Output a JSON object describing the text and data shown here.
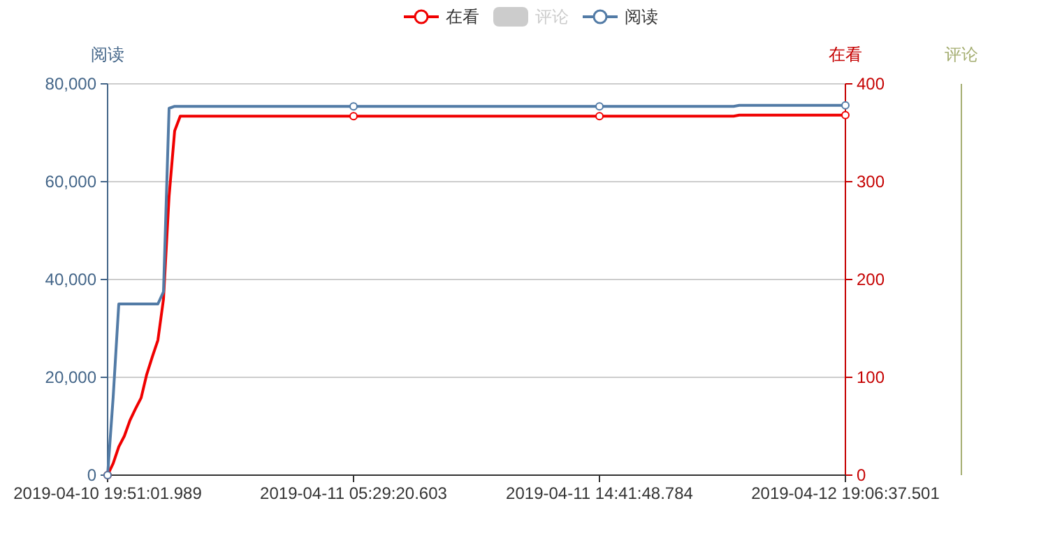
{
  "chart_data": {
    "type": "line",
    "categories": [
      "2019-04-10 19:51:01.989",
      null,
      null,
      null,
      null,
      null,
      null,
      null,
      null,
      null,
      null,
      null,
      null,
      null,
      null,
      null,
      null,
      null,
      null,
      null,
      null,
      null,
      null,
      null,
      null,
      null,
      null,
      null,
      null,
      null,
      null,
      null,
      null,
      null,
      null,
      null,
      null,
      null,
      null,
      null,
      null,
      null,
      null,
      null,
      "2019-04-11 05:29:20.603",
      null,
      null,
      null,
      null,
      null,
      null,
      null,
      null,
      null,
      null,
      null,
      null,
      null,
      null,
      null,
      null,
      null,
      null,
      null,
      null,
      null,
      null,
      null,
      null,
      null,
      null,
      null,
      null,
      null,
      null,
      null,
      null,
      null,
      null,
      null,
      null,
      null,
      null,
      null,
      null,
      null,
      null,
      null,
      "2019-04-11 14:41:48.784",
      null,
      null,
      null,
      null,
      null,
      null,
      null,
      null,
      null,
      null,
      null,
      null,
      null,
      null,
      null,
      null,
      null,
      null,
      null,
      null,
      null,
      null,
      null,
      null,
      null,
      null,
      null,
      null,
      null,
      null,
      null,
      null,
      null,
      null,
      null,
      null,
      null,
      null,
      null,
      null,
      null,
      null,
      null,
      "2019-04-12 19:06:37.501"
    ],
    "series": [
      {
        "name": "在看",
        "color": "#f00000",
        "axis": "y2",
        "values": [
          0,
          12,
          29,
          40,
          56,
          68,
          79,
          103,
          121,
          138,
          180,
          285,
          352,
          367,
          367,
          367,
          367,
          367,
          367,
          367,
          367,
          367,
          367,
          367,
          367,
          367,
          367,
          367,
          367,
          367,
          367,
          367,
          367,
          367,
          367,
          367,
          367,
          367,
          367,
          367,
          367,
          367,
          367,
          367,
          367,
          367,
          367,
          367,
          367,
          367,
          367,
          367,
          367,
          367,
          367,
          367,
          367,
          367,
          367,
          367,
          367,
          367,
          367,
          367,
          367,
          367,
          367,
          367,
          367,
          367,
          367,
          367,
          367,
          367,
          367,
          367,
          367,
          367,
          367,
          367,
          367,
          367,
          367,
          367,
          367,
          367,
          367,
          367,
          367,
          367,
          367,
          367,
          367,
          367,
          367,
          367,
          367,
          367,
          367,
          367,
          367,
          367,
          367,
          367,
          367,
          367,
          367,
          367,
          367,
          367,
          367,
          367,
          367,
          368,
          368,
          368,
          368,
          368,
          368,
          368,
          368,
          368,
          368,
          368,
          368,
          368,
          368,
          368,
          368,
          368,
          368,
          368,
          368
        ]
      },
      {
        "name": "评论",
        "type": "bar",
        "color": "#cccccc",
        "values": [
          null,
          null,
          null,
          null,
          null,
          null,
          null,
          null,
          null,
          null,
          null,
          null,
          null,
          null,
          null,
          null,
          null,
          null,
          null,
          null,
          null,
          null,
          null,
          null,
          null,
          null,
          null,
          null,
          null,
          null,
          null,
          null,
          null,
          null,
          null,
          null,
          null,
          null,
          null,
          null,
          null,
          null,
          null,
          null,
          null,
          null,
          null,
          null,
          null,
          null,
          null,
          null,
          null,
          null,
          null,
          null,
          null,
          null,
          null,
          null,
          null,
          null,
          null,
          null,
          null,
          null,
          null,
          null,
          null,
          null,
          null,
          null,
          null,
          null,
          null,
          null,
          null,
          null,
          null,
          null,
          null,
          null,
          null,
          null,
          null,
          null,
          null,
          null,
          null,
          null,
          null,
          null,
          null,
          null,
          null,
          null,
          null,
          null,
          null,
          null,
          null,
          null,
          null,
          null,
          null,
          null,
          null,
          null,
          null,
          null,
          null,
          null,
          null,
          null,
          null,
          null,
          null,
          null,
          null,
          null,
          null,
          null,
          null,
          null,
          null,
          null,
          null,
          null,
          null,
          null,
          null,
          null,
          null
        ]
      },
      {
        "name": "阅读",
        "color": "#527ba6",
        "values": [
          0,
          16000,
          35000,
          35000,
          35000,
          35000,
          35000,
          35000,
          35000,
          35000,
          37500,
          75000,
          75400,
          75400,
          75400,
          75400,
          75400,
          75400,
          75400,
          75400,
          75400,
          75400,
          75400,
          75400,
          75400,
          75400,
          75400,
          75400,
          75400,
          75400,
          75400,
          75400,
          75400,
          75400,
          75400,
          75400,
          75400,
          75400,
          75400,
          75400,
          75400,
          75400,
          75400,
          75400,
          75400,
          75400,
          75400,
          75400,
          75400,
          75400,
          75400,
          75400,
          75400,
          75400,
          75400,
          75400,
          75400,
          75400,
          75400,
          75400,
          75400,
          75400,
          75400,
          75400,
          75400,
          75400,
          75400,
          75400,
          75400,
          75400,
          75400,
          75400,
          75400,
          75400,
          75400,
          75400,
          75400,
          75400,
          75400,
          75400,
          75400,
          75400,
          75400,
          75400,
          75400,
          75400,
          75400,
          75400,
          75400,
          75400,
          75400,
          75400,
          75400,
          75400,
          75400,
          75400,
          75400,
          75400,
          75400,
          75400,
          75400,
          75400,
          75400,
          75400,
          75400,
          75400,
          75400,
          75400,
          75400,
          75400,
          75400,
          75400,
          75400,
          75600,
          75600,
          75600,
          75600,
          75600,
          75600,
          75600,
          75600,
          75600,
          75600,
          75600,
          75600,
          75600,
          75600,
          75600,
          75600,
          75600,
          75600,
          75600,
          75600
        ]
      }
    ],
    "ylabel": "阅读",
    "y2label": "在看",
    "y3label": "评论",
    "ylim": [
      0,
      80000
    ],
    "yticks": [
      0,
      {
        "value": 20000,
        "label": "20,000"
      },
      {
        "value": 40000,
        "label": "40,000"
      },
      {
        "value": 60000,
        "label": "60,000"
      },
      {
        "value": 80000,
        "label": "80,000"
      }
    ],
    "y2lim": [
      0,
      400
    ],
    "y2ticks": [
      0,
      100,
      200,
      300,
      400
    ],
    "grid": "y",
    "legend": "top"
  }
}
